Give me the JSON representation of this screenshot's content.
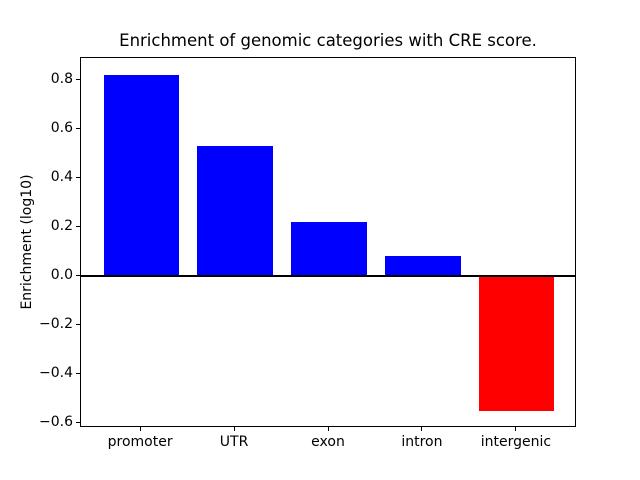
{
  "chart_data": {
    "type": "bar",
    "title": "Enrichment of genomic categories with CRE score.",
    "xlabel": "",
    "ylabel": "Enrichment (log10)",
    "categories": [
      "promoter",
      "UTR",
      "exon",
      "intron",
      "intergenic"
    ],
    "values": [
      0.82,
      0.53,
      0.22,
      0.08,
      -0.55
    ],
    "bar_colors": [
      "#0000ff",
      "#0000ff",
      "#0000ff",
      "#0000ff",
      "#ff0000"
    ],
    "positive_color": "#0000ff",
    "negative_color": "#ff0000",
    "bar_width_fraction": 0.8,
    "xlim": [
      -0.64,
      4.64
    ],
    "ylim": [
      -0.62,
      0.89
    ],
    "yticks": [
      {
        "value": 0.8,
        "label": "0.8"
      },
      {
        "value": 0.6,
        "label": "0.6"
      },
      {
        "value": 0.4,
        "label": "0.4"
      },
      {
        "value": 0.2,
        "label": "0.2"
      },
      {
        "value": 0.0,
        "label": "0.0"
      },
      {
        "value": -0.2,
        "label": "−0.2"
      },
      {
        "value": -0.4,
        "label": "−0.4"
      },
      {
        "value": -0.6,
        "label": "−0.6"
      }
    ],
    "grid": false,
    "legend": "none",
    "zero_line": true,
    "frame_color": "#000000",
    "background_color": "#ffffff"
  }
}
